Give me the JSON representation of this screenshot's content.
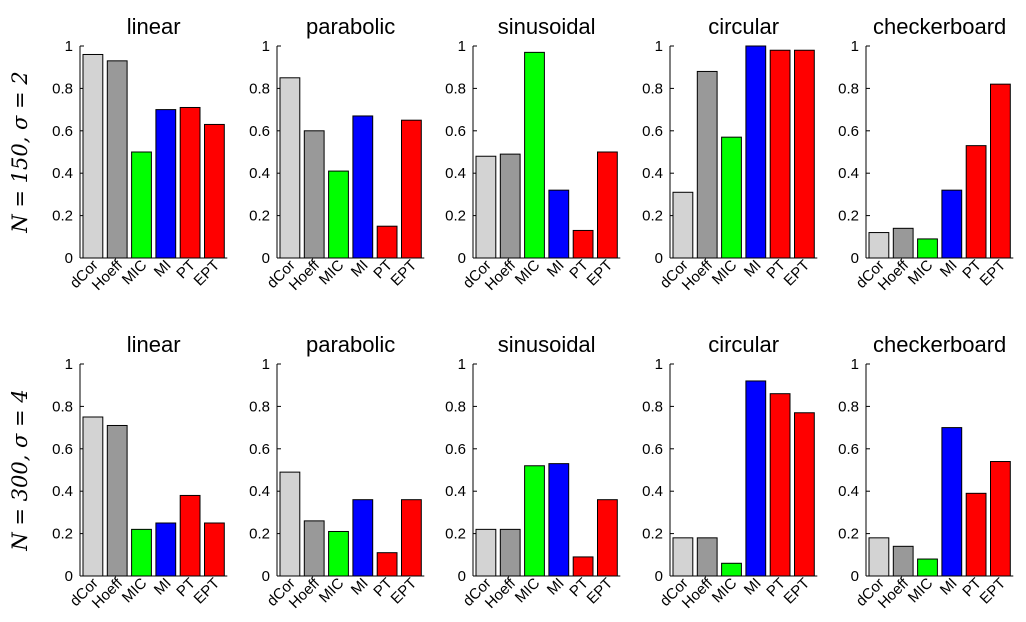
{
  "row_labels": [
    "N = 150, σ = 2",
    "N = 300, σ = 4"
  ],
  "categories": [
    "dCor",
    "Hoeff",
    "MIC",
    "MI",
    "PT",
    "EPT"
  ],
  "colors": [
    "#d3d3d3",
    "#999999",
    "#00ff00",
    "#0000ff",
    "#ff0000",
    "#ff0000"
  ],
  "y_ticks": [
    "0",
    "0.2",
    "0.4",
    "0.6",
    "0.8",
    "1"
  ],
  "chart_data": [
    {
      "type": "bar",
      "title": "linear",
      "ylim": [
        0,
        1
      ],
      "row": 0,
      "values": [
        0.96,
        0.93,
        0.5,
        0.7,
        0.71,
        0.63
      ]
    },
    {
      "type": "bar",
      "title": "parabolic",
      "ylim": [
        0,
        1
      ],
      "row": 0,
      "values": [
        0.85,
        0.6,
        0.41,
        0.67,
        0.15,
        0.65
      ]
    },
    {
      "type": "bar",
      "title": "sinusoidal",
      "ylim": [
        0,
        1
      ],
      "row": 0,
      "values": [
        0.48,
        0.49,
        0.97,
        0.32,
        0.13,
        0.5
      ]
    },
    {
      "type": "bar",
      "title": "circular",
      "ylim": [
        0,
        1
      ],
      "row": 0,
      "values": [
        0.31,
        0.88,
        0.57,
        1.0,
        0.98,
        0.98
      ]
    },
    {
      "type": "bar",
      "title": "checkerboard",
      "ylim": [
        0,
        1
      ],
      "row": 0,
      "values": [
        0.12,
        0.14,
        0.09,
        0.32,
        0.53,
        0.82
      ]
    },
    {
      "type": "bar",
      "title": "linear",
      "ylim": [
        0,
        1
      ],
      "row": 1,
      "values": [
        0.75,
        0.71,
        0.22,
        0.25,
        0.38,
        0.25
      ]
    },
    {
      "type": "bar",
      "title": "parabolic",
      "ylim": [
        0,
        1
      ],
      "row": 1,
      "values": [
        0.49,
        0.26,
        0.21,
        0.36,
        0.11,
        0.36
      ]
    },
    {
      "type": "bar",
      "title": "sinusoidal",
      "ylim": [
        0,
        1
      ],
      "row": 1,
      "values": [
        0.22,
        0.22,
        0.52,
        0.53,
        0.09,
        0.36
      ]
    },
    {
      "type": "bar",
      "title": "circular",
      "ylim": [
        0,
        1
      ],
      "row": 1,
      "values": [
        0.18,
        0.18,
        0.06,
        0.92,
        0.86,
        0.77
      ]
    },
    {
      "type": "bar",
      "title": "checkerboard",
      "ylim": [
        0,
        1
      ],
      "row": 1,
      "values": [
        0.18,
        0.14,
        0.08,
        0.7,
        0.39,
        0.54
      ]
    }
  ]
}
